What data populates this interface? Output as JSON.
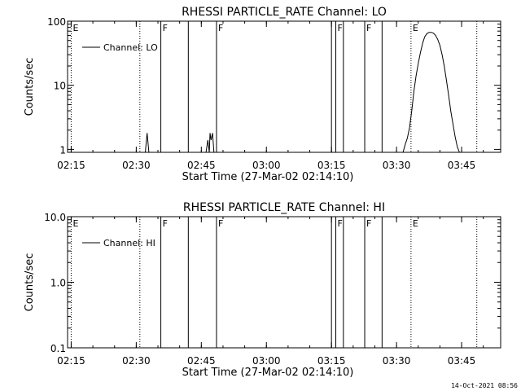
{
  "footer": {
    "timestamp": "14-Oct-2021 08:56"
  },
  "chart_data": [
    {
      "type": "line",
      "title": "RHESSI PARTICLE_RATE Channel: LO",
      "xlabel": "Start Time (27-Mar-02 02:14:10)",
      "ylabel": "Counts/sec",
      "yscale": "log",
      "ylim": [
        0.9,
        100
      ],
      "xlim": [
        "02:14:10",
        "03:54:00"
      ],
      "xtick_labels": [
        "02:15",
        "02:30",
        "02:45",
        "03:00",
        "03:15",
        "03:30",
        "03:45"
      ],
      "ytick_labels": [
        "1",
        "10",
        "100"
      ],
      "legend": {
        "position": "top-left",
        "entries": [
          "Channel: LO"
        ]
      },
      "series": [
        {
          "name": "Channel: LO",
          "segments": [
            {
              "x": [
                "02:32:05",
                "02:32:30",
                "02:32:55"
              ],
              "y": [
                0.9,
                1.8,
                0.9
              ]
            },
            {
              "x": [
                "02:46:05",
                "02:46:30",
                "02:46:50",
                "02:47:00",
                "02:47:15",
                "02:47:35",
                "02:47:55"
              ],
              "y": [
                0.9,
                1.4,
                0.9,
                1.8,
                1.4,
                1.8,
                0.9
              ]
            },
            {
              "x": [
                "03:31:30",
                "03:32:00",
                "03:32:30",
                "03:33:00",
                "03:33:30",
                "03:34:00",
                "03:34:30",
                "03:35:00",
                "03:35:30",
                "03:36:00",
                "03:36:30",
                "03:37:00",
                "03:37:30",
                "03:38:00",
                "03:38:30",
                "03:39:00",
                "03:39:30",
                "03:40:00",
                "03:40:30",
                "03:41:00",
                "03:41:30",
                "03:42:00",
                "03:42:30",
                "03:43:00",
                "03:43:30",
                "03:44:00",
                "03:44:30"
              ],
              "y": [
                0.9,
                1.2,
                1.5,
                2.2,
                4,
                8,
                14,
                22,
                32,
                45,
                57,
                64,
                67,
                67,
                65,
                60,
                52,
                42,
                30,
                20,
                12,
                7,
                4,
                2.5,
                1.6,
                1.1,
                0.9
              ]
            }
          ]
        }
      ],
      "markers": [
        {
          "time": "02:15:00",
          "label": "E",
          "style": "dotted"
        },
        {
          "time": "02:30:50",
          "label": "",
          "style": "dotted"
        },
        {
          "time": "02:35:40",
          "label": "F",
          "style": "solid"
        },
        {
          "time": "02:42:00",
          "label": "",
          "style": "solid"
        },
        {
          "time": "02:48:30",
          "label": "F",
          "style": "solid"
        },
        {
          "time": "03:15:00",
          "label": "",
          "style": "solid"
        },
        {
          "time": "03:16:00",
          "label": "F",
          "style": "solid"
        },
        {
          "time": "03:17:45",
          "label": "",
          "style": "solid"
        },
        {
          "time": "03:22:40",
          "label": "F",
          "style": "solid"
        },
        {
          "time": "03:26:40",
          "label": "",
          "style": "solid"
        },
        {
          "time": "03:33:20",
          "label": "E",
          "style": "dotted"
        },
        {
          "time": "03:48:30",
          "label": "",
          "style": "dotted"
        }
      ]
    },
    {
      "type": "line",
      "title": "RHESSI PARTICLE_RATE Channel: HI",
      "xlabel": "Start Time (27-Mar-02 02:14:10)",
      "ylabel": "Counts/sec",
      "yscale": "log",
      "ylim": [
        0.1,
        10
      ],
      "xlim": [
        "02:14:10",
        "03:54:00"
      ],
      "xtick_labels": [
        "02:15",
        "02:30",
        "02:45",
        "03:00",
        "03:15",
        "03:30",
        "03:45"
      ],
      "ytick_labels": [
        "0.1",
        "1.0",
        "10.0"
      ],
      "legend": {
        "position": "top-left",
        "entries": [
          "Channel: HI"
        ]
      },
      "series": [
        {
          "name": "Channel: HI",
          "segments": []
        }
      ],
      "markers": [
        {
          "time": "02:15:00",
          "label": "E",
          "style": "dotted"
        },
        {
          "time": "02:30:50",
          "label": "",
          "style": "dotted"
        },
        {
          "time": "02:35:40",
          "label": "F",
          "style": "solid"
        },
        {
          "time": "02:42:00",
          "label": "",
          "style": "solid"
        },
        {
          "time": "02:48:30",
          "label": "F",
          "style": "solid"
        },
        {
          "time": "03:15:00",
          "label": "",
          "style": "solid"
        },
        {
          "time": "03:16:00",
          "label": "F",
          "style": "solid"
        },
        {
          "time": "03:17:45",
          "label": "",
          "style": "solid"
        },
        {
          "time": "03:22:40",
          "label": "F",
          "style": "solid"
        },
        {
          "time": "03:26:40",
          "label": "",
          "style": "solid"
        },
        {
          "time": "03:33:20",
          "label": "E",
          "style": "dotted"
        },
        {
          "time": "03:48:30",
          "label": "",
          "style": "dotted"
        }
      ]
    }
  ]
}
